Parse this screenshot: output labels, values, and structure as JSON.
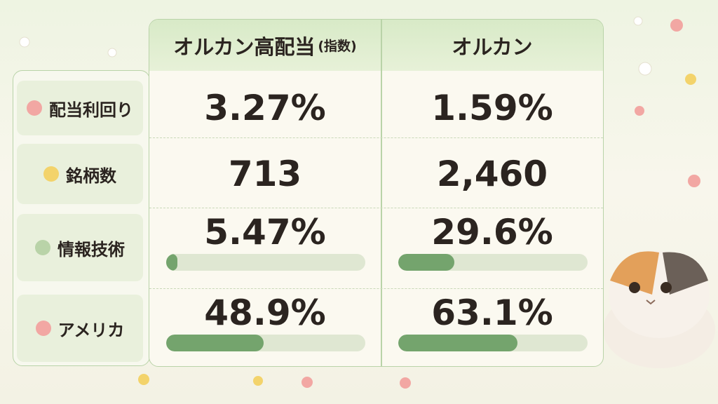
{
  "table": {
    "columns": [
      {
        "name": "オルカン高配当",
        "note": "(指数)"
      },
      {
        "name": "オルカン"
      }
    ],
    "rows": [
      {
        "label": "配当利回り",
        "cells": [
          "3.27%",
          "1.59%"
        ]
      },
      {
        "label": "銘柄数",
        "cells": [
          "713",
          "2,460"
        ]
      },
      {
        "label": "情報技術",
        "cells": [
          {
            "value": 5.47,
            "label": "5.47%"
          },
          {
            "value": 29.6,
            "label": "29.6%"
          }
        ]
      },
      {
        "label": "アメリカ",
        "cells": [
          {
            "value": 48.9,
            "label": "48.9%"
          },
          {
            "value": 63.1,
            "label": "63.1%"
          }
        ]
      }
    ]
  }
}
